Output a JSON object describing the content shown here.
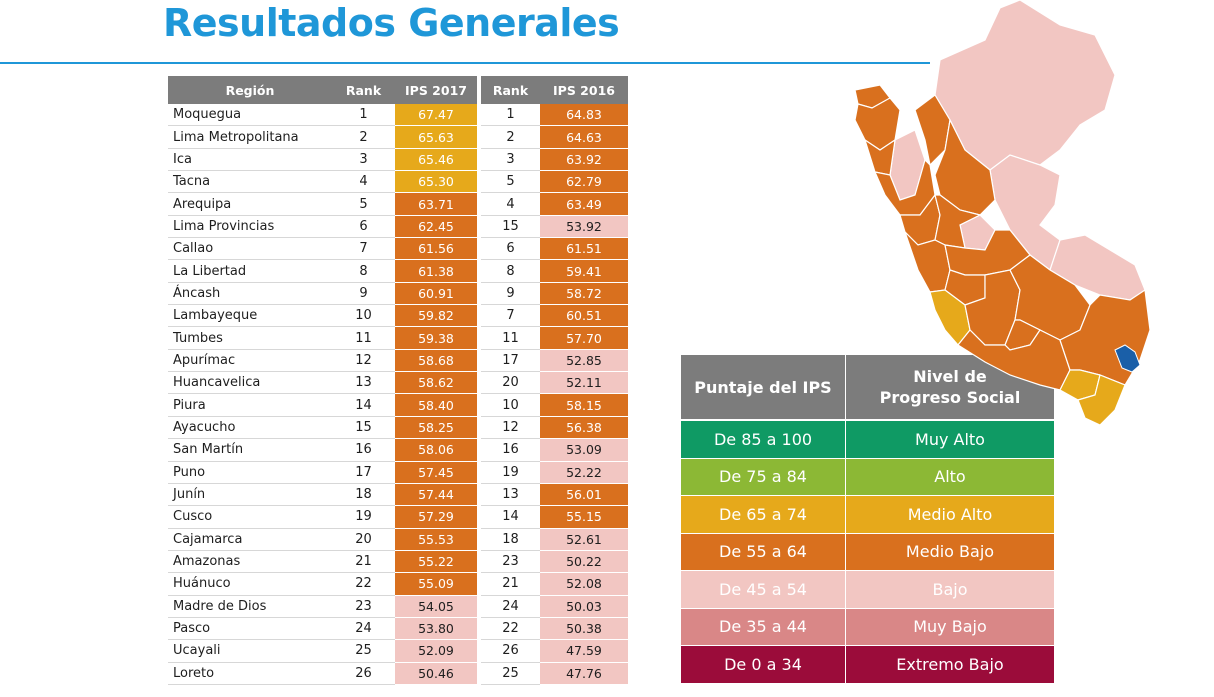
{
  "title": "Resultados Generales",
  "table": {
    "headers": {
      "region": "Región",
      "rank": "Rank",
      "ips_2017": "IPS 2017",
      "rank_2016": "Rank",
      "ips_2016": "IPS 2016"
    },
    "rows": [
      {
        "region": "Moquegua",
        "rank": "1",
        "ips_2017": "67.47",
        "lvl17": "medio-alto",
        "rank_2016": "1",
        "ips_2016": "64.83",
        "lvl16": "medio-bajo"
      },
      {
        "region": "Lima Metropolitana",
        "rank": "2",
        "ips_2017": "65.63",
        "lvl17": "medio-alto",
        "rank_2016": "2",
        "ips_2016": "64.63",
        "lvl16": "medio-bajo"
      },
      {
        "region": "Ica",
        "rank": "3",
        "ips_2017": "65.46",
        "lvl17": "medio-alto",
        "rank_2016": "3",
        "ips_2016": "63.92",
        "lvl16": "medio-bajo"
      },
      {
        "region": "Tacna",
        "rank": "4",
        "ips_2017": "65.30",
        "lvl17": "medio-alto",
        "rank_2016": "5",
        "ips_2016": "62.79",
        "lvl16": "medio-bajo"
      },
      {
        "region": "Arequipa",
        "rank": "5",
        "ips_2017": "63.71",
        "lvl17": "medio-bajo",
        "rank_2016": "4",
        "ips_2016": "63.49",
        "lvl16": "medio-bajo"
      },
      {
        "region": "Lima Provincias",
        "rank": "6",
        "ips_2017": "62.45",
        "lvl17": "medio-bajo",
        "rank_2016": "15",
        "ips_2016": "53.92",
        "lvl16": "bajo"
      },
      {
        "region": "Callao",
        "rank": "7",
        "ips_2017": "61.56",
        "lvl17": "medio-bajo",
        "rank_2016": "6",
        "ips_2016": "61.51",
        "lvl16": "medio-bajo"
      },
      {
        "region": "La Libertad",
        "rank": "8",
        "ips_2017": "61.38",
        "lvl17": "medio-bajo",
        "rank_2016": "8",
        "ips_2016": "59.41",
        "lvl16": "medio-bajo"
      },
      {
        "region": "Áncash",
        "rank": "9",
        "ips_2017": "60.91",
        "lvl17": "medio-bajo",
        "rank_2016": "9",
        "ips_2016": "58.72",
        "lvl16": "medio-bajo"
      },
      {
        "region": "Lambayeque",
        "rank": "10",
        "ips_2017": "59.82",
        "lvl17": "medio-bajo",
        "rank_2016": "7",
        "ips_2016": "60.51",
        "lvl16": "medio-bajo"
      },
      {
        "region": "Tumbes",
        "rank": "11",
        "ips_2017": "59.38",
        "lvl17": "medio-bajo",
        "rank_2016": "11",
        "ips_2016": "57.70",
        "lvl16": "medio-bajo"
      },
      {
        "region": "Apurímac",
        "rank": "12",
        "ips_2017": "58.68",
        "lvl17": "medio-bajo",
        "rank_2016": "17",
        "ips_2016": "52.85",
        "lvl16": "bajo"
      },
      {
        "region": "Huancavelica",
        "rank": "13",
        "ips_2017": "58.62",
        "lvl17": "medio-bajo",
        "rank_2016": "20",
        "ips_2016": "52.11",
        "lvl16": "bajo"
      },
      {
        "region": "Piura",
        "rank": "14",
        "ips_2017": "58.40",
        "lvl17": "medio-bajo",
        "rank_2016": "10",
        "ips_2016": "58.15",
        "lvl16": "medio-bajo"
      },
      {
        "region": "Ayacucho",
        "rank": "15",
        "ips_2017": "58.25",
        "lvl17": "medio-bajo",
        "rank_2016": "12",
        "ips_2016": "56.38",
        "lvl16": "medio-bajo"
      },
      {
        "region": "San Martín",
        "rank": "16",
        "ips_2017": "58.06",
        "lvl17": "medio-bajo",
        "rank_2016": "16",
        "ips_2016": "53.09",
        "lvl16": "bajo"
      },
      {
        "region": "Puno",
        "rank": "17",
        "ips_2017": "57.45",
        "lvl17": "medio-bajo",
        "rank_2016": "19",
        "ips_2016": "52.22",
        "lvl16": "bajo"
      },
      {
        "region": "Junín",
        "rank": "18",
        "ips_2017": "57.44",
        "lvl17": "medio-bajo",
        "rank_2016": "13",
        "ips_2016": "56.01",
        "lvl16": "medio-bajo"
      },
      {
        "region": "Cusco",
        "rank": "19",
        "ips_2017": "57.29",
        "lvl17": "medio-bajo",
        "rank_2016": "14",
        "ips_2016": "55.15",
        "lvl16": "medio-bajo"
      },
      {
        "region": "Cajamarca",
        "rank": "20",
        "ips_2017": "55.53",
        "lvl17": "medio-bajo",
        "rank_2016": "18",
        "ips_2016": "52.61",
        "lvl16": "bajo"
      },
      {
        "region": "Amazonas",
        "rank": "21",
        "ips_2017": "55.22",
        "lvl17": "medio-bajo",
        "rank_2016": "23",
        "ips_2016": "50.22",
        "lvl16": "bajo"
      },
      {
        "region": "Huánuco",
        "rank": "22",
        "ips_2017": "55.09",
        "lvl17": "medio-bajo",
        "rank_2016": "21",
        "ips_2016": "52.08",
        "lvl16": "bajo"
      },
      {
        "region": "Madre de Dios",
        "rank": "23",
        "ips_2017": "54.05",
        "lvl17": "bajo",
        "rank_2016": "24",
        "ips_2016": "50.03",
        "lvl16": "bajo"
      },
      {
        "region": "Pasco",
        "rank": "24",
        "ips_2017": "53.80",
        "lvl17": "bajo",
        "rank_2016": "22",
        "ips_2016": "50.38",
        "lvl16": "bajo"
      },
      {
        "region": "Ucayali",
        "rank": "25",
        "ips_2017": "52.09",
        "lvl17": "bajo",
        "rank_2016": "26",
        "ips_2016": "47.59",
        "lvl16": "bajo"
      },
      {
        "region": "Loreto",
        "rank": "26",
        "ips_2017": "50.46",
        "lvl17": "bajo",
        "rank_2016": "25",
        "ips_2016": "47.76",
        "lvl16": "bajo"
      }
    ]
  },
  "legend": {
    "header_score": "Puntaje del IPS",
    "header_level_line1": "Nivel de",
    "header_level_line2": "Progreso Social",
    "rows": [
      {
        "range": "De 85 a 100",
        "level": "Muy Alto",
        "color": "#0f9a64"
      },
      {
        "range": "De 75 a 84",
        "level": "Alto",
        "color": "#8cb835"
      },
      {
        "range": "De 65 a 74",
        "level": "Medio Alto",
        "color": "#e6a91b"
      },
      {
        "range": "De 55 a 64",
        "level": "Medio Bajo",
        "color": "#d9701e"
      },
      {
        "range": "De 45 a 54",
        "level": "Bajo",
        "color": "#f2c6c2"
      },
      {
        "range": "De 35 a 44",
        "level": "Muy Bajo",
        "color": "#d98787"
      },
      {
        "range": "De 0 a 34",
        "level": "Extremo Bajo",
        "color": "#9b0c3a"
      }
    ]
  },
  "map": {
    "colors": {
      "medio_bajo": "#d9701e",
      "bajo": "#f2c6c2",
      "medio_alto": "#e6a91b",
      "lake": "#1a5fa8"
    }
  }
}
